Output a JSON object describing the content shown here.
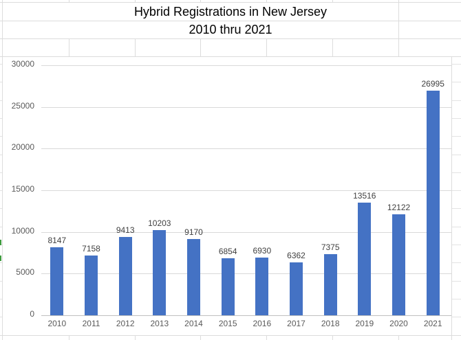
{
  "title": {
    "line1": "Hybrid Registrations in New Jersey",
    "line2": "2010 thru 2021"
  },
  "chart_data": {
    "type": "bar",
    "title": "Hybrid Registrations in New Jersey 2010 thru 2021",
    "categories": [
      "2010",
      "2011",
      "2012",
      "2013",
      "2014",
      "2015",
      "2016",
      "2017",
      "2018",
      "2019",
      "2020",
      "2021"
    ],
    "values": [
      8147,
      7158,
      9413,
      10203,
      9170,
      6854,
      6930,
      6362,
      7375,
      13516,
      12122,
      26995
    ],
    "data_labels": [
      "8147",
      "7158",
      "9413",
      "10203",
      "9170",
      "6854",
      "6930",
      "6362",
      "7375",
      "13516",
      "12122",
      "26995"
    ],
    "xlabel": "",
    "ylabel": "",
    "ylim": [
      0,
      30000
    ],
    "ytick_step": 5000,
    "yticks": [
      "0",
      "5000",
      "10000",
      "15000",
      "20000",
      "25000",
      "30000"
    ],
    "grid": true,
    "legend": false,
    "bar_color": "#4472C4"
  },
  "colors": {
    "bar": "#4472C4",
    "plot_gridline": "#d9d9d9",
    "axis_line": "#bfbfbf",
    "tick_label": "#595959",
    "data_label": "#404040",
    "title_text": "#000000",
    "sheet_gridline": "#dcdcdc",
    "page_break_marker": "#3f9c3f"
  }
}
